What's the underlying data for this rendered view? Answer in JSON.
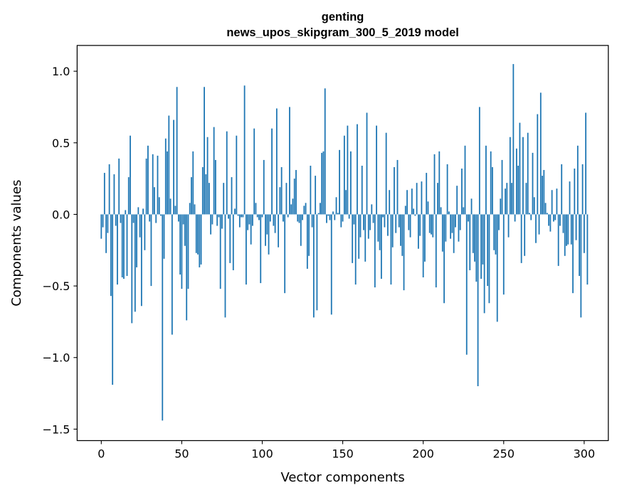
{
  "chart_data": {
    "type": "bar",
    "title": "genting",
    "subtitle": "news_upos_skipgram_300_5_2019 model",
    "xlabel": "Vector components",
    "ylabel": "Components values",
    "xlim": [
      -15,
      315
    ],
    "ylim": [
      -1.58,
      1.18
    ],
    "x_ticks": [
      0,
      50,
      100,
      150,
      200,
      250,
      300
    ],
    "y_ticks": [
      -1.5,
      -1.0,
      -0.5,
      0.0,
      0.5,
      1.0
    ],
    "y_tick_labels": [
      "−1.5",
      "−1.0",
      "−0.5",
      "0.0",
      "0.5",
      "1.0"
    ],
    "bar_color": "#1f77b4",
    "values": [
      -0.17,
      -0.09,
      0.29,
      -0.27,
      -0.13,
      0.35,
      -0.57,
      -1.19,
      0.28,
      -0.08,
      -0.49,
      0.39,
      -0.06,
      -0.44,
      -0.45,
      0.03,
      -0.43,
      0.26,
      0.55,
      -0.76,
      -0.06,
      -0.68,
      -0.37,
      0.05,
      -0.16,
      -0.64,
      0.04,
      -0.25,
      0.39,
      0.48,
      -0.05,
      -0.5,
      0.42,
      0.19,
      -0.06,
      0.41,
      0.12,
      -0.01,
      -1.44,
      -0.31,
      0.53,
      0.44,
      0.69,
      0.11,
      -0.84,
      0.66,
      0.06,
      0.89,
      -0.05,
      -0.42,
      -0.52,
      -0.07,
      -0.22,
      -0.74,
      -0.52,
      0.08,
      0.26,
      0.44,
      0.07,
      -0.27,
      -0.28,
      -0.37,
      -0.35,
      0.33,
      0.89,
      0.28,
      0.54,
      0.22,
      -0.14,
      -0.07,
      0.61,
      0.38,
      -0.08,
      -0.02,
      -0.52,
      -0.1,
      0.22,
      -0.72,
      0.58,
      -0.03,
      -0.34,
      0.26,
      -0.39,
      0.04,
      0.55,
      -0.01,
      -0.09,
      -0.02,
      -0.02,
      0.9,
      -0.49,
      -0.11,
      -0.07,
      -0.21,
      -0.08,
      0.6,
      0.08,
      -0.02,
      -0.04,
      -0.48,
      -0.02,
      0.38,
      -0.22,
      -0.14,
      -0.28,
      -0.05,
      0.6,
      -0.08,
      -0.13,
      0.74,
      -0.23,
      0.19,
      0.33,
      -0.05,
      -0.55,
      0.22,
      -0.02,
      0.75,
      0.07,
      0.11,
      0.25,
      0.31,
      -0.05,
      -0.06,
      -0.22,
      -0.04,
      0.06,
      0.08,
      -0.38,
      -0.29,
      0.34,
      -0.09,
      -0.72,
      0.27,
      -0.67,
      0.01,
      0.08,
      0.43,
      0.44,
      0.88,
      -0.06,
      -0.01,
      -0.04,
      -0.7,
      0.02,
      -0.04,
      0.12,
      0.01,
      0.45,
      -0.09,
      -0.05,
      0.55,
      0.17,
      0.62,
      -0.03,
      0.44,
      -0.34,
      -0.07,
      -0.49,
      0.63,
      -0.31,
      -0.16,
      0.34,
      -0.11,
      -0.33,
      0.71,
      -0.17,
      -0.11,
      0.07,
      -0.06,
      -0.51,
      0.62,
      -0.19,
      -0.25,
      -0.45,
      -0.02,
      -0.09,
      0.57,
      -0.15,
      0.17,
      -0.49,
      -0.23,
      0.33,
      -0.13,
      0.38,
      -0.09,
      -0.22,
      -0.29,
      -0.53,
      0.06,
      0.17,
      -0.11,
      -0.16,
      0.18,
      0.04,
      -0.01,
      0.22,
      -0.24,
      -0.15,
      0.23,
      -0.44,
      -0.33,
      0.29,
      0.09,
      -0.13,
      -0.14,
      -0.16,
      0.42,
      -0.51,
      0.22,
      0.44,
      0.05,
      -0.26,
      -0.62,
      -0.19,
      0.35,
      0.02,
      -0.17,
      -0.13,
      -0.27,
      -0.09,
      0.2,
      -0.19,
      -0.11,
      0.32,
      0.05,
      0.48,
      -0.98,
      -0.05,
      -0.39,
      0.11,
      -0.27,
      -0.33,
      -0.47,
      -1.2,
      0.75,
      -0.45,
      -0.35,
      -0.69,
      0.48,
      -0.5,
      -0.62,
      0.44,
      0.33,
      -0.25,
      -0.28,
      -0.75,
      -0.11,
      0.11,
      0.38,
      -0.56,
      0.18,
      0.22,
      -0.16,
      0.54,
      0.22,
      1.05,
      -0.05,
      0.46,
      0.34,
      0.64,
      -0.34,
      0.54,
      -0.29,
      0.22,
      0.57,
      0.01,
      -0.04,
      0.43,
      0.12,
      -0.2,
      0.7,
      -0.14,
      0.85,
      0.27,
      0.31,
      0.08,
      0.01,
      -0.08,
      -0.12,
      0.17,
      -0.05,
      -0.04,
      0.18,
      -0.36,
      -0.08,
      0.35,
      -0.13,
      -0.29,
      -0.22,
      -0.21,
      0.23,
      -0.21,
      -0.55,
      0.32,
      -0.18,
      0.48,
      -0.43,
      -0.72,
      0.35,
      -0.27,
      0.71,
      -0.49
    ]
  }
}
